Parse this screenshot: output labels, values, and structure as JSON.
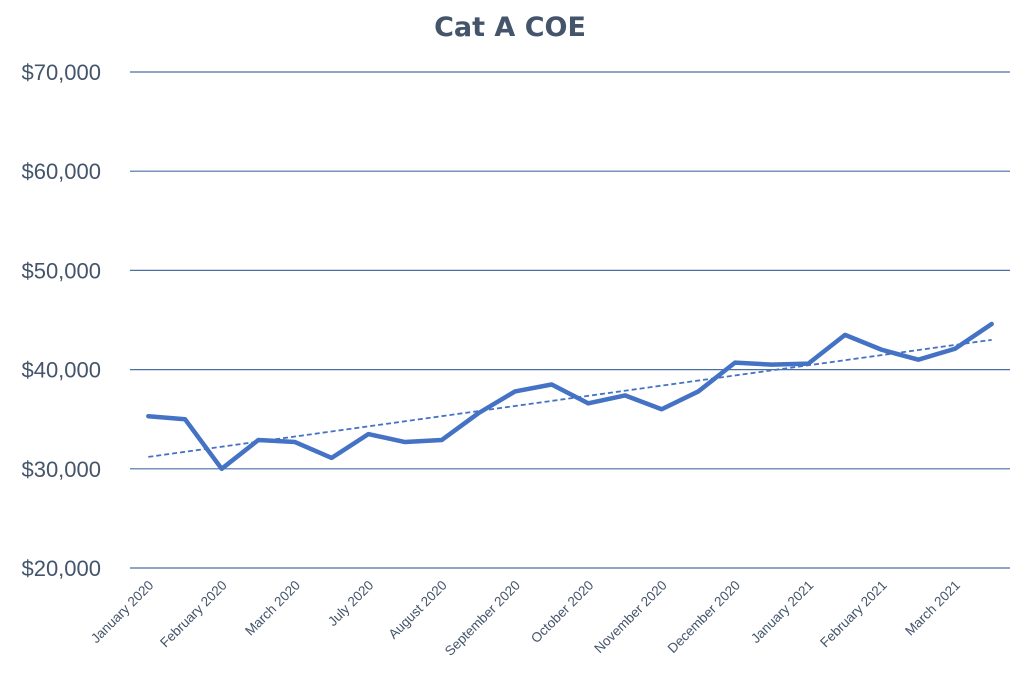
{
  "chart_data": {
    "type": "line",
    "title": "Cat A COE",
    "xlabel": "",
    "ylabel": "",
    "ylim": [
      20000,
      70000
    ],
    "yticks": [
      20000,
      30000,
      40000,
      50000,
      60000,
      70000
    ],
    "ytick_labels": [
      "$20,000",
      "$30,000",
      "$40,000",
      "$50,000",
      "$60,000",
      "$70,000"
    ],
    "x_tick_labels": [
      "January 2020",
      "February 2020",
      "March 2020",
      "July 2020",
      "August 2020",
      "September 2020",
      "October 2020",
      "November 2020",
      "December 2020",
      "January 2021",
      "February 2021",
      "March 2021"
    ],
    "grid": true,
    "legend": "none",
    "series": [
      {
        "values": [
          35300,
          35000,
          30000,
          32900,
          32700,
          31100,
          33500,
          32700,
          32900,
          35600,
          37800,
          38500,
          36600,
          37400,
          36000,
          37800,
          40700,
          40500,
          40600,
          43500,
          42000,
          41000,
          42100,
          44600
        ],
        "color": "#4472c4"
      }
    ],
    "trendline": {
      "type": "linear",
      "start": 31200,
      "end": 43000,
      "style": "dashed",
      "color": "#4472c4"
    }
  }
}
